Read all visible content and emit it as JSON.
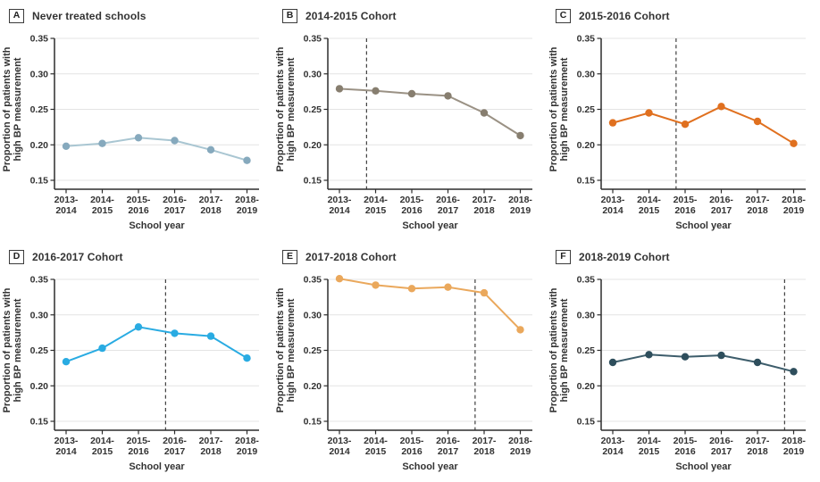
{
  "figure": {
    "xlabel": "School year",
    "ylabel_lines": [
      "Proportion of patients with",
      "high BP measurement"
    ],
    "ylim": [
      0.15,
      0.35
    ],
    "yticks": [
      0.15,
      0.2,
      0.25,
      0.3,
      0.35
    ],
    "ytick_labels": [
      "0.15",
      "0.20",
      "0.25",
      "0.30",
      "0.35"
    ],
    "x_tick_display": [
      [
        "2013-",
        "2014"
      ],
      [
        "2014-",
        "2015"
      ],
      [
        "2015-",
        "2016"
      ],
      [
        "2016-",
        "2017"
      ],
      [
        "2017-",
        "2018"
      ],
      [
        "2018-",
        "2019"
      ]
    ],
    "grid": "horizontal gridlines at each y tick",
    "background_color": "#ffffff",
    "axis_color": "#2d2d2d",
    "gridline_color": "#e4e4e4",
    "dashed_line_color": "#3f3f3f"
  },
  "chart_data": [
    {
      "type": "line",
      "panel_letter": "A",
      "title": "Never treated schools",
      "xlabel": "School year",
      "ylabel": "Proportion of patients with high BP measurement",
      "ylim": [
        0.15,
        0.35
      ],
      "categories": [
        "2013-2014",
        "2014-2015",
        "2015-2016",
        "2016-2017",
        "2017-2018",
        "2018-2019"
      ],
      "values": [
        0.198,
        0.202,
        0.21,
        0.206,
        0.193,
        0.178
      ],
      "color": "#86a9bd",
      "line_color": "#a9c6d2",
      "dashed_line_x": null,
      "dashed_line_before": null
    },
    {
      "type": "line",
      "panel_letter": "B",
      "title": "2014-2015 Cohort",
      "xlabel": "School year",
      "ylabel": "Proportion of patients with high BP measurement",
      "ylim": [
        0.15,
        0.35
      ],
      "categories": [
        "2013-2014",
        "2014-2015",
        "2015-2016",
        "2016-2017",
        "2017-2018",
        "2018-2019"
      ],
      "values": [
        0.279,
        0.276,
        0.272,
        0.269,
        0.245,
        0.213
      ],
      "color": "#877e6f",
      "line_color": "#9a9184",
      "dashed_line_x": 0.75,
      "dashed_line_before": "2014-2015"
    },
    {
      "type": "line",
      "panel_letter": "C",
      "title": "2015-2016 Cohort",
      "xlabel": "School year",
      "ylabel": "Proportion of patients with high BP measurement",
      "ylim": [
        0.15,
        0.35
      ],
      "categories": [
        "2013-2014",
        "2014-2015",
        "2015-2016",
        "2016-2017",
        "2017-2018",
        "2018-2019"
      ],
      "values": [
        0.231,
        0.245,
        0.229,
        0.254,
        0.233,
        0.202
      ],
      "color": "#e0701f",
      "line_color": "#e0701f",
      "dashed_line_x": 1.75,
      "dashed_line_before": "2015-2016"
    },
    {
      "type": "line",
      "panel_letter": "D",
      "title": "2016-2017 Cohort",
      "xlabel": "School year",
      "ylabel": "Proportion of patients with high BP measurement",
      "ylim": [
        0.15,
        0.35
      ],
      "categories": [
        "2013-2014",
        "2014-2015",
        "2015-2016",
        "2016-2017",
        "2017-2018",
        "2018-2019"
      ],
      "values": [
        0.234,
        0.253,
        0.283,
        0.274,
        0.27,
        0.239
      ],
      "color": "#29abe2",
      "line_color": "#29abe2",
      "dashed_line_x": 2.75,
      "dashed_line_before": "2016-2017"
    },
    {
      "type": "line",
      "panel_letter": "E",
      "title": "2017-2018 Cohort",
      "xlabel": "School year",
      "ylabel": "Proportion of patients with high BP measurement",
      "ylim": [
        0.15,
        0.35
      ],
      "categories": [
        "2013-2014",
        "2014-2015",
        "2015-2016",
        "2016-2017",
        "2017-2018",
        "2018-2019"
      ],
      "values": [
        0.351,
        0.342,
        0.337,
        0.339,
        0.331,
        0.279
      ],
      "color": "#eaa85c",
      "line_color": "#eaa85c",
      "dashed_line_x": 3.75,
      "dashed_line_before": "2017-2018"
    },
    {
      "type": "line",
      "panel_letter": "F",
      "title": "2018-2019 Cohort",
      "xlabel": "School year",
      "ylabel": "Proportion of patients with high BP measurement",
      "ylim": [
        0.15,
        0.35
      ],
      "categories": [
        "2013-2014",
        "2014-2015",
        "2015-2016",
        "2016-2017",
        "2017-2018",
        "2018-2019"
      ],
      "values": [
        0.233,
        0.244,
        0.241,
        0.243,
        0.233,
        0.22
      ],
      "color": "#2e4e5c",
      "line_color": "#3d5d6b",
      "dashed_line_x": 4.75,
      "dashed_line_before": "2018-2019"
    }
  ]
}
